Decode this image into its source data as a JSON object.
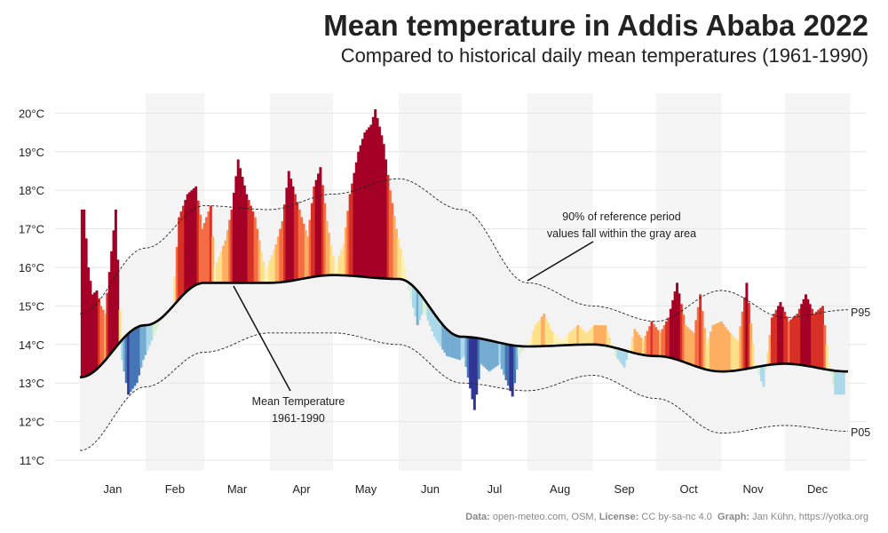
{
  "header": {
    "title": "Mean temperature in Addis Ababa 2022",
    "subtitle": "Compared to historical daily mean temperatures (1961-1990)"
  },
  "credits": {
    "data_label": "Data:",
    "data_value": "open-meteo.com, OSM,",
    "license_label": "License:",
    "license_value": "CC by-sa-nc 4.0",
    "graph_label": "Graph:",
    "graph_value": "Jan Kühn, https://yotka.org"
  },
  "colors": {
    "mean_line": "#000000",
    "band": "#f3f3f3",
    "month_shade": "#f5f5f5",
    "grid": "#e6e6e6",
    "warm_scale": [
      "#fff2b8",
      "#fee08b",
      "#fdae61",
      "#f46d43",
      "#d73027",
      "#a50026"
    ],
    "cool_scale": [
      "#d9f0d3",
      "#abd9e9",
      "#74add1",
      "#4575b4",
      "#313695"
    ]
  },
  "chart_data": {
    "type": "area",
    "title": "Mean temperature in Addis Ababa 2022",
    "subtitle": "Compared to historical daily mean temperatures (1961-1990)",
    "xlabel": "",
    "ylabel": "",
    "ylim": [
      11,
      20.2
    ],
    "y_ticks": [
      11,
      12,
      13,
      14,
      15,
      16,
      17,
      18,
      19,
      20
    ],
    "y_tick_labels": [
      "11°C",
      "12°C",
      "13°C",
      "14°C",
      "15°C",
      "16°C",
      "17°C",
      "18°C",
      "19°C",
      "20°C"
    ],
    "months": [
      "Jan",
      "Feb",
      "Mar",
      "Apr",
      "May",
      "Jun",
      "Jul",
      "Aug",
      "Sep",
      "Oct",
      "Nov",
      "Dec"
    ],
    "grid": true,
    "shaded_months": [
      "Feb",
      "Apr",
      "Jun",
      "Aug",
      "Oct",
      "Dec"
    ],
    "reference_series": [
      {
        "name": "P95",
        "values": [
          14.8,
          16.5,
          17.6,
          17.5,
          17.9,
          18.3,
          17.5,
          15.6,
          15.0,
          14.6,
          15.4,
          14.7,
          14.9
        ]
      },
      {
        "name": "Mean Temperature 1961-1990",
        "values": [
          13.15,
          14.5,
          15.6,
          15.6,
          15.8,
          15.7,
          14.2,
          13.95,
          14.0,
          13.7,
          13.3,
          13.5,
          13.3
        ]
      },
      {
        "name": "P05",
        "values": [
          11.25,
          12.9,
          13.8,
          14.3,
          14.3,
          14.0,
          13.0,
          12.8,
          13.2,
          12.6,
          11.7,
          11.9,
          11.75
        ]
      }
    ],
    "series": [
      {
        "values": [
          [
            2,
            17.5
          ],
          [
            4,
            16.0
          ],
          [
            6,
            15.3
          ],
          [
            8,
            15.4
          ],
          [
            10,
            15.0
          ],
          [
            12,
            14.8
          ],
          [
            17,
            17.5
          ],
          [
            20,
            13.6
          ],
          [
            23,
            12.7
          ],
          [
            27,
            13.0
          ],
          [
            30,
            13.6
          ],
          [
            38,
            14.6
          ],
          [
            44,
            15.0
          ],
          [
            47,
            17.3
          ],
          [
            51,
            17.9
          ],
          [
            55,
            18.1
          ],
          [
            58,
            17.0
          ],
          [
            62,
            17.6
          ],
          [
            64,
            16.0
          ],
          [
            69,
            16.7
          ],
          [
            72,
            17.5
          ],
          [
            75,
            18.8
          ],
          [
            79,
            17.9
          ],
          [
            83,
            17.3
          ],
          [
            86,
            16.4
          ],
          [
            88,
            15.9
          ],
          [
            93,
            16.6
          ],
          [
            96,
            17.2
          ],
          [
            99,
            18.5
          ],
          [
            102,
            17.9
          ],
          [
            105,
            17.3
          ],
          [
            108,
            16.8
          ],
          [
            111,
            18.1
          ],
          [
            114,
            18.6
          ],
          [
            117,
            17.2
          ],
          [
            121,
            16.0
          ],
          [
            125,
            16.6
          ],
          [
            128,
            17.9
          ],
          [
            132,
            19.0
          ],
          [
            135,
            19.5
          ],
          [
            138,
            19.7
          ],
          [
            140,
            20.1
          ],
          [
            144,
            19.2
          ],
          [
            147,
            18.0
          ],
          [
            150,
            17.0
          ],
          [
            152,
            16.5
          ],
          [
            154,
            16.0
          ],
          [
            156,
            15.4
          ],
          [
            160,
            14.5
          ],
          [
            163,
            14.9
          ],
          [
            168,
            14.2
          ],
          [
            174,
            13.7
          ],
          [
            180,
            13.6
          ],
          [
            182,
            13.7
          ],
          [
            187,
            12.3
          ],
          [
            190,
            13.5
          ],
          [
            194,
            13.3
          ],
          [
            199,
            13.5
          ],
          [
            205,
            12.65
          ],
          [
            208,
            13.7
          ],
          [
            212,
            14.0
          ],
          [
            216,
            14.5
          ],
          [
            220,
            14.8
          ],
          [
            223,
            14.4
          ],
          [
            228,
            14.1
          ],
          [
            232,
            14.3
          ],
          [
            236,
            14.5
          ],
          [
            240,
            14.3
          ],
          [
            244,
            14.5
          ],
          [
            249,
            14.5
          ],
          [
            254,
            13.7
          ],
          [
            258,
            13.4
          ],
          [
            263,
            14.4
          ],
          [
            267,
            14.1
          ],
          [
            271,
            14.6
          ],
          [
            275,
            14.3
          ],
          [
            279,
            14.7
          ],
          [
            283,
            15.6
          ],
          [
            287,
            14.5
          ],
          [
            291,
            14.3
          ],
          [
            294,
            15.3
          ],
          [
            297,
            14.0
          ],
          [
            300,
            14.5
          ],
          [
            304,
            14.6
          ],
          [
            308,
            14.3
          ],
          [
            312,
            14.1
          ],
          [
            316,
            15.6
          ],
          [
            320,
            13.5
          ],
          [
            324,
            12.9
          ],
          [
            328,
            14.7
          ],
          [
            332,
            15.1
          ],
          [
            336,
            14.6
          ],
          [
            340,
            14.8
          ],
          [
            344,
            15.3
          ],
          [
            348,
            14.8
          ],
          [
            352,
            15.0
          ],
          [
            355,
            13.5
          ],
          [
            358,
            12.7
          ]
        ]
      }
    ],
    "annotations": [
      {
        "text": [
          "90% of reference period",
          "values fall within the gray area"
        ]
      },
      {
        "text": [
          "Mean Temperature",
          "1961-1990"
        ]
      },
      {
        "text": [
          "P95"
        ]
      },
      {
        "text": [
          "P05"
        ]
      }
    ]
  }
}
